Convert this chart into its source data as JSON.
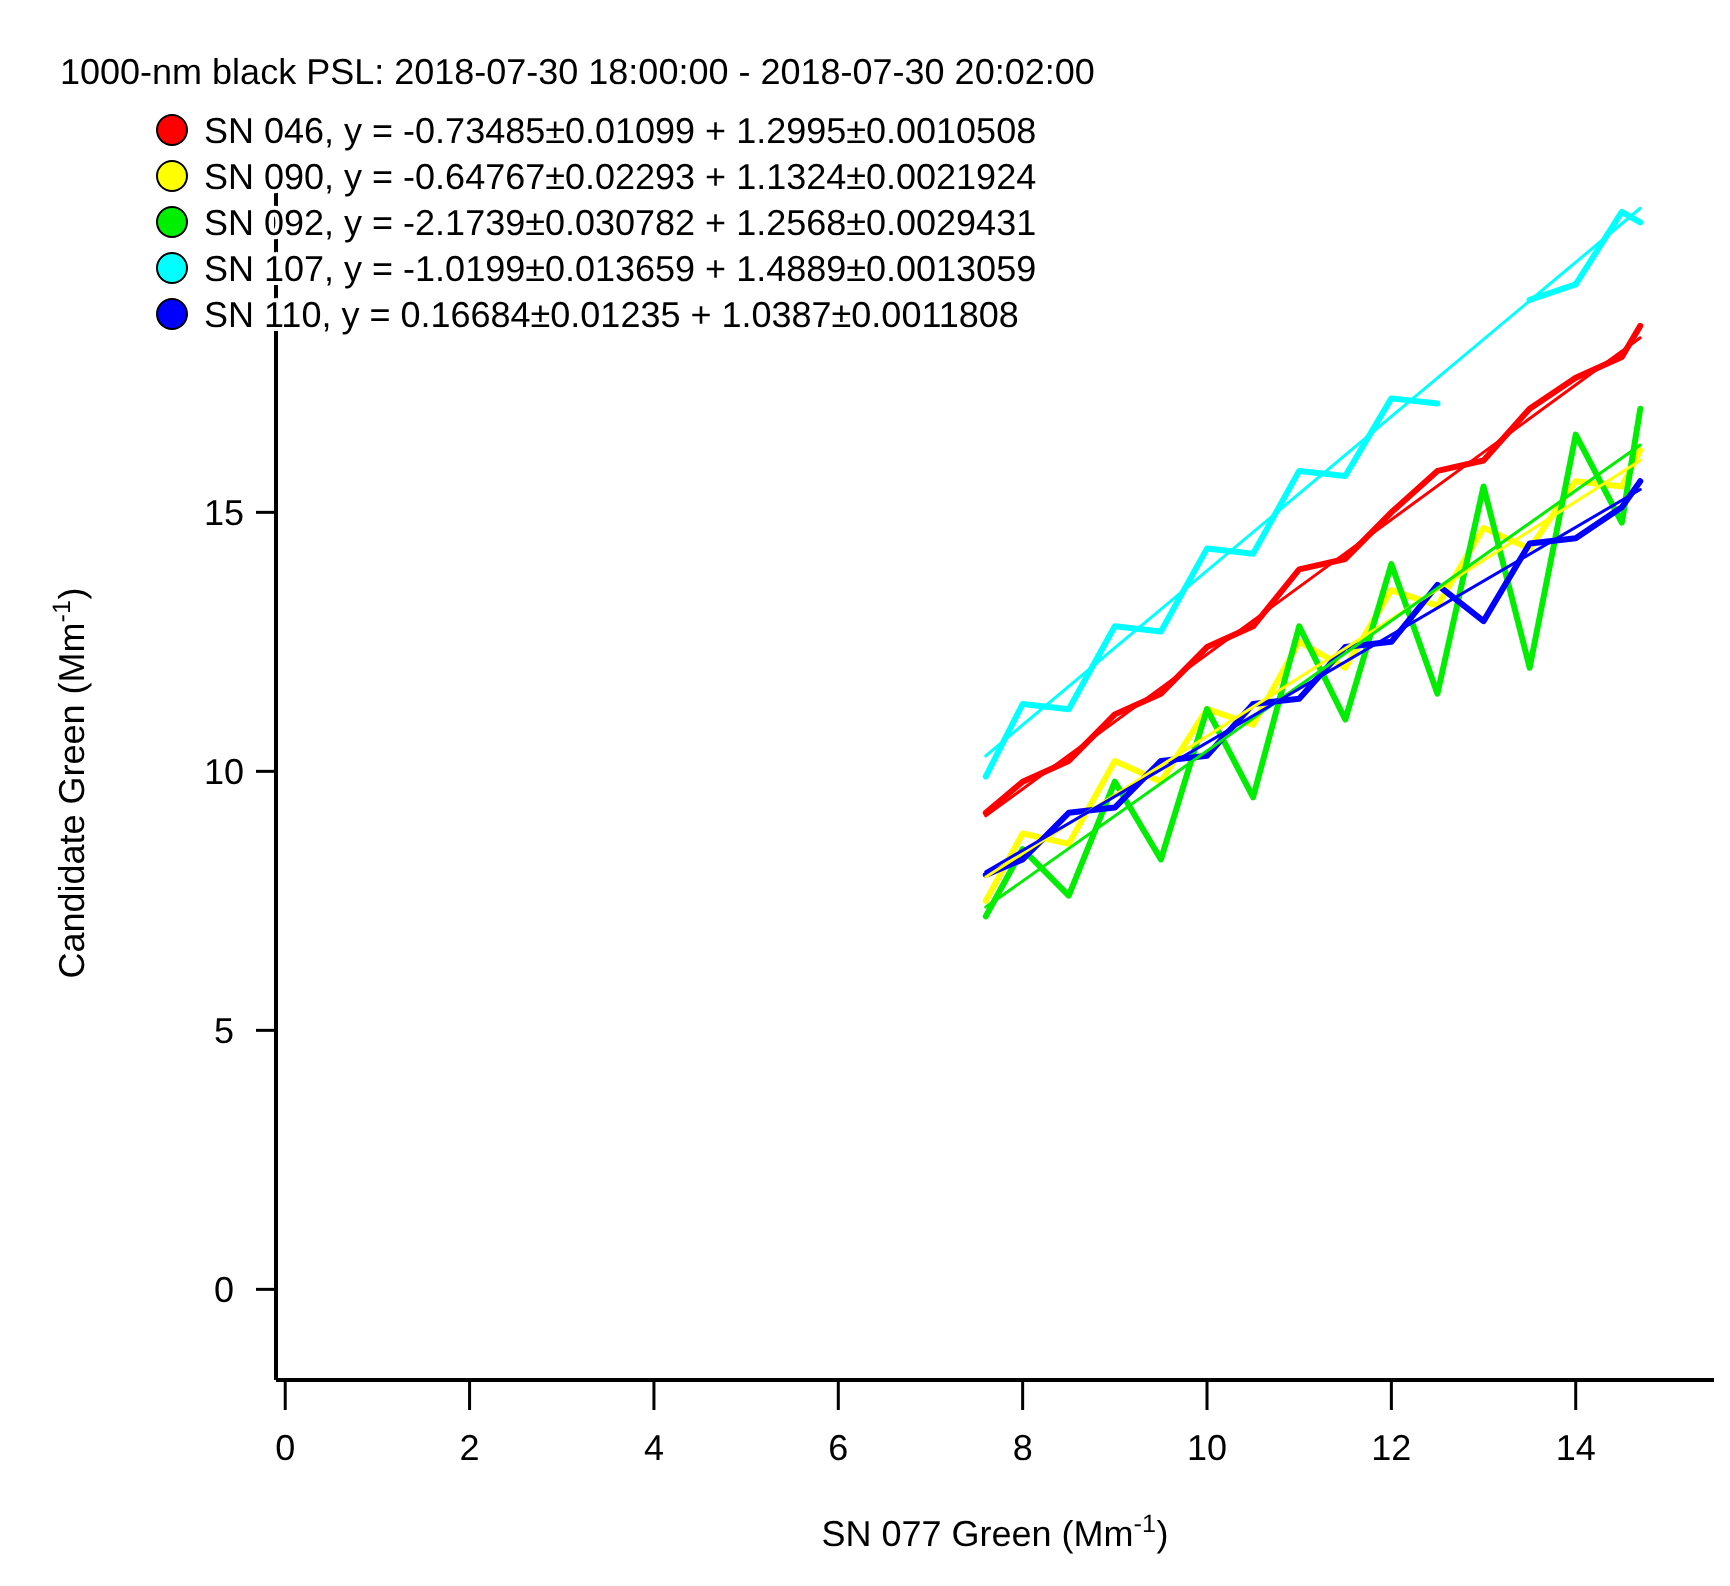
{
  "chart_data": {
    "type": "line",
    "title": "1000-nm black PSL: 2018-07-30 18:00:00 - 2018-07-30 20:02:00",
    "xlabel": "SN 077 Green (Mm$^{-1}$)",
    "ylabel": "Candidate Green (Mm$^{-1}$)",
    "xlim": [
      -0.1,
      15.5
    ],
    "ylim": [
      -1.75,
      21.3
    ],
    "xticks": [
      0,
      2,
      4,
      6,
      8,
      10,
      12,
      14
    ],
    "yticks": [
      0,
      5,
      10,
      15
    ],
    "grid": false,
    "legend": "top left",
    "marker": "none",
    "line_style": "solid",
    "series": [
      {
        "name": "SN 046, y = -0.73485±0.01099 + 1.2995±0.0010508",
        "color": "#ff0000",
        "x": [
          7.6,
          8,
          8.5,
          9,
          9.5,
          10,
          10.5,
          11,
          11.5,
          12,
          12.5,
          13,
          13.5,
          14,
          14.5,
          14.7
        ],
        "values": [
          9.2,
          9.8,
          10.2,
          11.1,
          11.5,
          12.4,
          12.8,
          13.9,
          14.1,
          15.0,
          15.8,
          16.0,
          17.0,
          17.6,
          18.0,
          18.6
        ]
      },
      {
        "name": "SN 090, y = -0.64767±0.02293 + 1.1324±0.0021924",
        "color": "#ffff00",
        "x": [
          7.6,
          8,
          8.5,
          9,
          9.5,
          10,
          10.5,
          11,
          11.5,
          12,
          12.5,
          13,
          13.5,
          14,
          14.5,
          14.7
        ],
        "values": [
          7.5,
          8.8,
          8.6,
          10.2,
          9.8,
          11.2,
          10.9,
          12.5,
          12.0,
          13.5,
          13.2,
          14.7,
          14.3,
          15.6,
          15.5,
          16.2
        ]
      },
      {
        "name": "SN 092, y = -2.1739±0.030782 + 1.2568±0.0029431",
        "color": "#00ee00",
        "x": [
          7.6,
          8,
          8.5,
          9,
          9.5,
          10,
          10.5,
          11,
          11.5,
          12,
          12.5,
          13,
          13.5,
          14,
          14.5,
          14.7
        ],
        "values": [
          7.2,
          8.5,
          7.6,
          9.8,
          8.3,
          11.2,
          9.5,
          12.8,
          11.0,
          14.0,
          11.5,
          15.5,
          12.0,
          16.5,
          14.8,
          17.0
        ]
      },
      {
        "name": "SN 107, y = -1.0199±0.013659 + 1.4889±0.0013059",
        "color": "#00ffff",
        "x": [
          7.6,
          8,
          8.5,
          9,
          9.5,
          10,
          10.5,
          11,
          11.5,
          12,
          12.5,
          13,
          13.5,
          14,
          14.5,
          14.7
        ],
        "values": [
          9.9,
          11.3,
          11.2,
          12.8,
          12.7,
          14.3,
          14.2,
          15.8,
          15.7,
          17.2,
          17.1,
          null,
          19.1,
          19.4,
          20.8,
          20.6
        ]
      },
      {
        "name": "SN 110, y = 0.16684±0.01235 + 1.0387±0.0011808",
        "color": "#0000ff",
        "x": [
          7.6,
          8,
          8.5,
          9,
          9.5,
          10,
          10.5,
          11,
          11.5,
          12,
          12.5,
          13,
          13.5,
          14,
          14.5,
          14.7
        ],
        "values": [
          8.0,
          8.3,
          9.2,
          9.3,
          10.2,
          10.3,
          11.3,
          11.4,
          12.4,
          12.5,
          13.6,
          12.9,
          14.4,
          14.5,
          15.1,
          15.6
        ]
      },
      {
        "color": "#ff0000",
        "x": [
          7.6,
          14.7
        ],
        "values": [
          9.14,
          18.37
        ]
      },
      {
        "color": "#ffff00",
        "x": [
          7.6,
          14.7
        ],
        "values": [
          7.96,
          16.0
        ]
      },
      {
        "color": "#00ee00",
        "x": [
          7.6,
          14.7
        ],
        "values": [
          7.38,
          16.3
        ]
      },
      {
        "color": "#00ffff",
        "x": [
          7.6,
          14.7
        ],
        "values": [
          10.3,
          20.87
        ]
      },
      {
        "color": "#0000ff",
        "x": [
          7.6,
          14.7
        ],
        "values": [
          8.06,
          15.44
        ]
      }
    ]
  }
}
